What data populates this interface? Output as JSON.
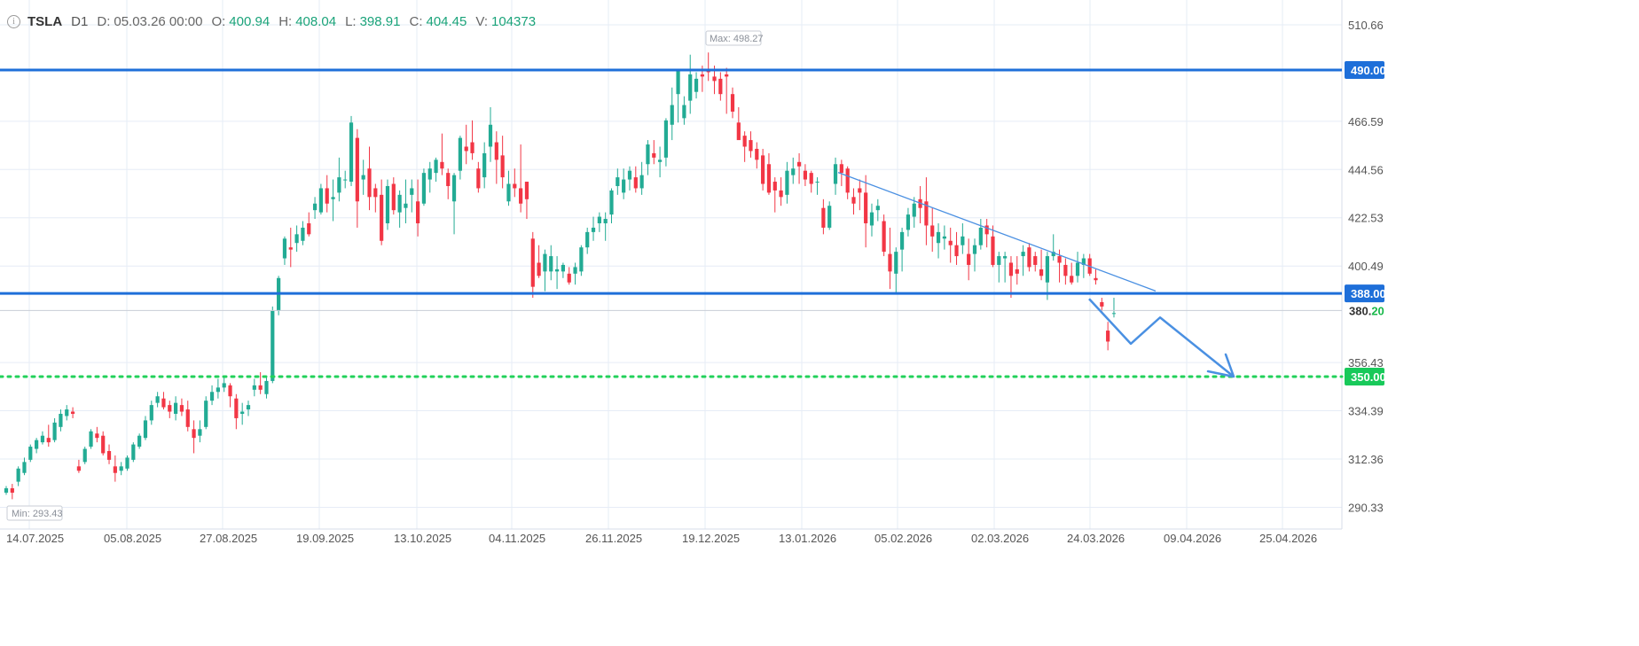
{
  "info_bar": {
    "symbol": "TSLA",
    "timeframe": "D1",
    "date_label": "D:",
    "date": "05.03.26 00:00",
    "open_label": "O:",
    "open": "400.94",
    "high_label": "H:",
    "high": "408.04",
    "low_label": "L:",
    "low": "398.91",
    "close_label": "C:",
    "close": "404.45",
    "volume_label": "V:",
    "volume": "104373"
  },
  "colors": {
    "up": "#22ab94",
    "down": "#f23645",
    "horizontal_line": "#1e6fd9",
    "support_dotted": "#22d15a",
    "trendline": "#4a90e2",
    "grid": "#e6ecf6",
    "axis_text": "#555555"
  },
  "chart_data": {
    "type": "candlestick",
    "title": "",
    "ylim": [
      282,
      518
    ],
    "y_ticks": [
      "510.66",
      "466.59",
      "444.56",
      "422.53",
      "400.49",
      "356.43",
      "334.39",
      "312.36",
      "290.33"
    ],
    "x_labels": [
      "14.07.2025",
      "05.08.2025",
      "27.08.2025",
      "19.09.2025",
      "13.10.2025",
      "04.11.2025",
      "26.11.2025",
      "19.12.2025",
      "13.01.2026",
      "05.02.2026",
      "02.03.2026",
      "24.03.2026",
      "09.04.2026",
      "25.04.2026"
    ],
    "candles": [
      [
        297,
        300,
        296,
        299
      ],
      [
        299,
        301,
        294,
        297
      ],
      [
        302,
        309,
        300,
        308
      ],
      [
        306,
        313,
        305,
        311
      ],
      [
        312,
        319,
        311,
        318
      ],
      [
        317,
        322,
        315,
        321
      ],
      [
        320,
        325,
        319,
        323
      ],
      [
        322,
        328,
        318,
        320
      ],
      [
        321,
        331,
        320,
        329
      ],
      [
        327,
        335,
        325,
        333
      ],
      [
        332,
        337,
        330,
        335
      ],
      [
        334,
        336,
        331,
        333
      ],
      [
        309,
        312,
        306,
        307
      ],
      [
        311,
        318,
        310,
        317
      ],
      [
        318,
        326,
        317,
        325
      ],
      [
        324,
        327,
        320,
        322
      ],
      [
        323,
        325,
        314,
        315
      ],
      [
        316,
        319,
        310,
        312
      ],
      [
        309,
        314,
        302,
        306
      ],
      [
        307,
        311,
        305,
        309
      ],
      [
        308,
        314,
        307,
        313
      ],
      [
        312,
        320,
        311,
        319
      ],
      [
        318,
        324,
        317,
        323
      ],
      [
        322,
        332,
        321,
        330
      ],
      [
        330,
        339,
        328,
        337
      ],
      [
        338,
        343,
        336,
        341
      ],
      [
        340,
        343,
        335,
        336
      ],
      [
        337,
        339,
        331,
        334
      ],
      [
        333,
        341,
        330,
        338
      ],
      [
        337,
        340,
        332,
        334
      ],
      [
        335,
        339,
        325,
        327
      ],
      [
        326,
        330,
        315,
        322
      ],
      [
        323,
        330,
        320,
        326
      ],
      [
        327,
        341,
        326,
        339
      ],
      [
        339,
        346,
        337,
        343
      ],
      [
        343,
        349,
        340,
        345
      ],
      [
        345,
        350,
        343,
        347
      ],
      [
        346,
        347,
        336,
        341
      ],
      [
        340,
        342,
        326,
        331
      ],
      [
        333,
        338,
        328,
        334
      ],
      [
        335,
        339,
        332,
        337
      ],
      [
        344,
        349,
        341,
        346
      ],
      [
        346,
        352,
        342,
        344
      ],
      [
        342,
        350,
        340,
        348
      ],
      [
        348,
        382,
        347,
        380
      ],
      [
        380,
        396,
        378,
        395
      ],
      [
        404,
        414,
        401,
        413
      ],
      [
        409,
        418,
        400,
        408
      ],
      [
        411,
        419,
        407,
        415
      ],
      [
        412,
        421,
        410,
        418
      ],
      [
        420,
        425,
        414,
        415
      ],
      [
        426,
        432,
        422,
        429
      ],
      [
        425,
        438,
        424,
        436
      ],
      [
        436,
        442,
        425,
        429
      ],
      [
        431,
        440,
        421,
        432
      ],
      [
        434,
        450,
        430,
        441
      ],
      [
        440,
        444,
        436,
        440
      ],
      [
        439,
        469,
        437,
        466
      ],
      [
        459,
        463,
        418,
        430
      ],
      [
        440,
        449,
        433,
        442
      ],
      [
        445,
        455,
        426,
        432
      ],
      [
        436,
        438,
        425,
        432
      ],
      [
        433,
        440,
        410,
        412
      ],
      [
        420,
        440,
        417,
        437
      ],
      [
        438,
        441,
        424,
        426
      ],
      [
        425,
        435,
        418,
        433
      ],
      [
        427,
        440,
        420,
        429
      ],
      [
        433,
        440,
        425,
        436
      ],
      [
        430,
        440,
        414,
        420
      ],
      [
        429,
        445,
        428,
        443
      ],
      [
        440,
        448,
        434,
        445
      ],
      [
        443,
        450,
        439,
        449
      ],
      [
        448,
        461,
        442,
        445
      ],
      [
        443,
        445,
        431,
        437
      ],
      [
        430,
        443,
        415,
        442
      ],
      [
        444,
        460,
        440,
        459
      ],
      [
        455,
        465,
        447,
        453
      ],
      [
        457,
        467,
        449,
        452
      ],
      [
        445,
        448,
        434,
        436
      ],
      [
        441,
        457,
        436,
        452
      ],
      [
        455,
        473,
        448,
        465
      ],
      [
        457,
        462,
        438,
        449
      ],
      [
        451,
        460,
        436,
        441
      ],
      [
        430,
        444,
        428,
        438
      ],
      [
        438,
        445,
        432,
        436
      ],
      [
        436,
        456,
        425,
        429
      ],
      [
        439,
        439,
        422,
        431
      ],
      [
        413,
        416,
        386,
        391
      ],
      [
        402,
        410,
        395,
        396
      ],
      [
        398,
        408,
        389,
        406
      ],
      [
        398,
        410,
        394,
        405
      ],
      [
        398,
        405,
        390,
        399
      ],
      [
        398,
        402,
        395,
        401
      ],
      [
        397,
        400,
        392,
        393
      ],
      [
        397,
        402,
        392,
        400
      ],
      [
        398,
        410,
        396,
        409
      ],
      [
        409,
        418,
        406,
        416
      ],
      [
        416,
        423,
        412,
        418
      ],
      [
        420,
        425,
        416,
        423
      ],
      [
        420,
        425,
        412,
        422
      ],
      [
        424,
        436,
        420,
        435
      ],
      [
        437,
        445,
        433,
        441
      ],
      [
        434,
        445,
        431,
        440
      ],
      [
        440,
        446,
        435,
        444
      ],
      [
        441,
        446,
        434,
        436
      ],
      [
        436,
        448,
        433,
        442
      ],
      [
        447,
        458,
        442,
        456
      ],
      [
        452,
        458,
        447,
        450
      ],
      [
        448,
        455,
        441,
        449
      ],
      [
        450,
        468,
        446,
        467
      ],
      [
        465,
        482,
        458,
        474
      ],
      [
        479,
        490,
        466,
        490
      ],
      [
        468,
        478,
        465,
        474
      ],
      [
        476,
        497,
        470,
        488
      ],
      [
        480,
        489,
        477,
        486
      ],
      [
        488,
        492,
        480,
        487
      ],
      [
        490,
        498,
        485,
        489
      ],
      [
        487,
        492,
        479,
        485
      ],
      [
        486,
        489,
        476,
        479
      ],
      [
        488,
        491,
        470,
        487
      ],
      [
        479,
        482,
        468,
        471
      ],
      [
        466,
        473,
        460,
        458
      ],
      [
        460,
        462,
        448,
        455
      ],
      [
        458,
        462,
        450,
        453
      ],
      [
        454,
        457,
        445,
        449
      ],
      [
        451,
        454,
        435,
        438
      ],
      [
        447,
        452,
        433,
        434
      ],
      [
        439,
        441,
        425,
        435
      ],
      [
        435,
        441,
        428,
        432
      ],
      [
        433,
        448,
        429,
        444
      ],
      [
        442,
        450,
        438,
        445
      ],
      [
        448,
        452,
        438,
        446
      ],
      [
        444,
        447,
        437,
        440
      ],
      [
        443,
        444,
        434,
        438
      ],
      [
        439,
        441,
        433,
        439
      ],
      [
        427,
        431,
        415,
        418
      ],
      [
        418,
        430,
        417,
        428
      ],
      [
        438,
        450,
        433,
        447
      ],
      [
        447,
        449,
        437,
        443
      ],
      [
        445,
        446,
        431,
        434
      ],
      [
        432,
        436,
        424,
        429
      ],
      [
        436,
        440,
        426,
        434
      ],
      [
        434,
        442,
        409,
        420
      ],
      [
        419,
        429,
        414,
        425
      ],
      [
        426,
        431,
        421,
        428
      ],
      [
        421,
        424,
        405,
        407
      ],
      [
        406,
        418,
        390,
        398
      ],
      [
        397,
        409,
        388,
        407
      ],
      [
        408,
        418,
        398,
        416
      ],
      [
        417,
        427,
        414,
        424
      ],
      [
        423,
        432,
        418,
        429
      ],
      [
        431,
        437,
        420,
        427
      ],
      [
        430,
        441,
        410,
        419
      ],
      [
        419,
        427,
        407,
        414
      ],
      [
        411,
        420,
        404,
        416
      ],
      [
        413,
        419,
        408,
        414
      ],
      [
        412,
        418,
        402,
        410
      ],
      [
        410,
        416,
        401,
        405
      ],
      [
        410,
        420,
        406,
        414
      ],
      [
        406,
        413,
        394,
        401
      ],
      [
        406,
        413,
        398,
        410
      ],
      [
        410,
        422,
        408,
        418
      ],
      [
        419,
        422,
        409,
        415
      ],
      [
        414,
        419,
        400,
        401
      ],
      [
        401,
        407,
        393,
        405
      ],
      [
        404,
        407,
        393,
        405
      ],
      [
        402,
        405,
        386,
        396
      ],
      [
        399,
        405,
        392,
        397
      ],
      [
        405,
        410,
        396,
        407
      ],
      [
        409,
        411,
        398,
        400
      ],
      [
        405,
        407,
        398,
        401
      ],
      [
        399,
        408,
        394,
        396
      ],
      [
        393,
        407,
        385,
        405
      ],
      [
        405,
        415,
        403,
        407
      ],
      [
        405,
        408,
        393,
        402
      ],
      [
        401,
        404,
        392,
        396
      ],
      [
        396,
        402,
        392,
        393
      ],
      [
        396,
        407,
        393,
        402
      ],
      [
        401,
        406,
        395,
        404
      ],
      [
        404,
        406,
        396,
        397
      ],
      [
        395,
        399,
        392,
        394
      ],
      [
        384,
        386,
        379,
        382
      ],
      [
        371,
        375,
        362,
        366
      ],
      [
        379,
        386,
        377,
        379
      ]
    ],
    "horizontal_levels": [
      {
        "value": 490.0,
        "label": "490.00",
        "style": "solid"
      },
      {
        "value": 388.0,
        "label": "388.00",
        "style": "solid"
      },
      {
        "value": 350.0,
        "label": "350.00",
        "style": "dotted"
      }
    ],
    "current_price": {
      "value": 380.2,
      "label_main": "380.",
      "label_tail": "20"
    },
    "max_label": "Max: 498.27",
    "min_label": "Min: 293.43",
    "trendline": [
      [
        945,
        443.2
      ],
      [
        1303,
        389.1
      ]
    ],
    "projection_path": [
      [
        1228,
        385.5
      ],
      [
        1275,
        365.0
      ],
      [
        1308,
        377.0
      ],
      [
        1391,
        350.0
      ]
    ]
  }
}
